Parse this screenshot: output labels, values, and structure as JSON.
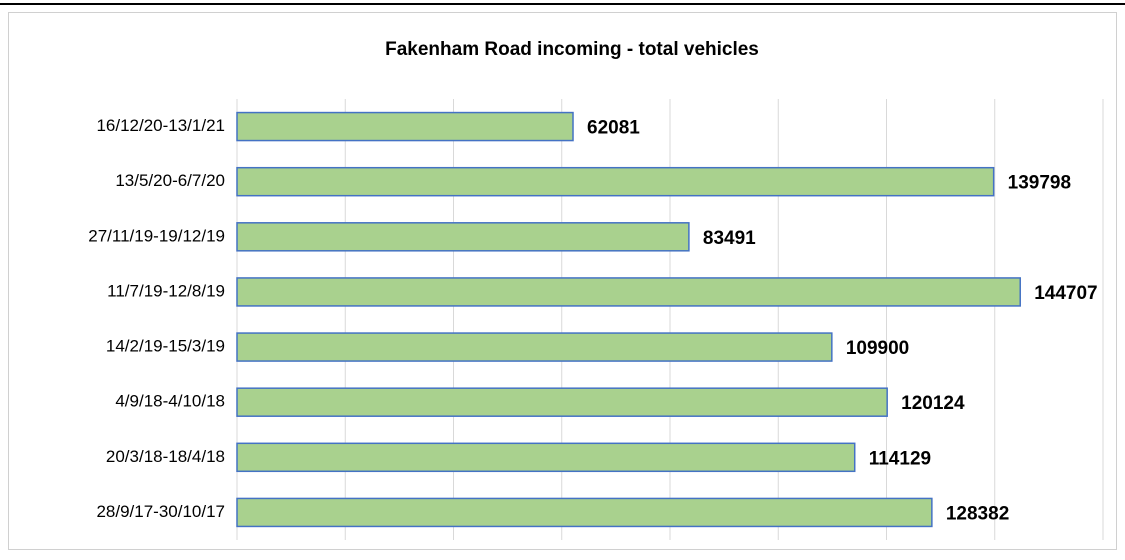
{
  "chart_data": {
    "type": "barh",
    "title": "Fakenham Road incoming - total vehicles",
    "categories": [
      "16/12/20-13/1/21",
      "13/5/20-6/7/20",
      "27/11/19-19/12/19",
      "11/7/19-12/8/19",
      "14/2/19-15/3/19",
      "4/9/18-4/10/18",
      "20/3/18-18/4/18",
      "28/9/17-30/10/17"
    ],
    "values": [
      62081,
      139798,
      83491,
      144707,
      109900,
      120124,
      114129,
      128382
    ],
    "color": "#a9d18e",
    "edge_color": "#4472c4",
    "xlim": [
      0,
      160000
    ],
    "xticks": [
      0,
      20000,
      40000,
      60000,
      80000,
      100000,
      120000,
      140000,
      160000
    ],
    "grid": true
  }
}
